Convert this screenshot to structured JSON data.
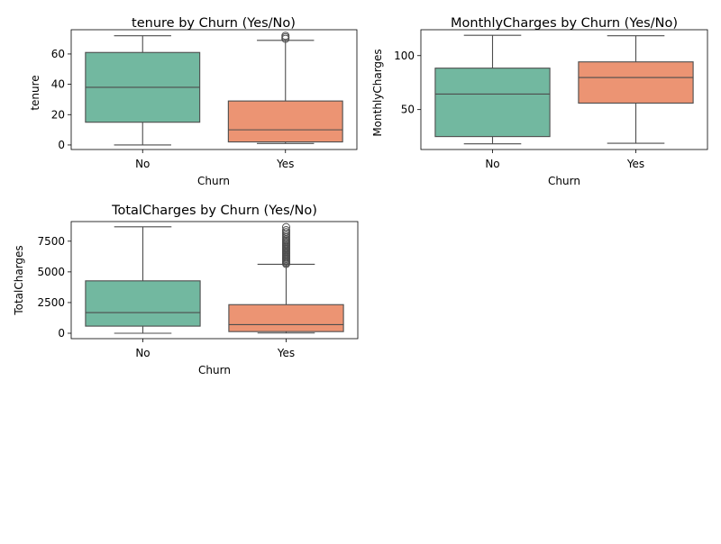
{
  "colors": {
    "No": "#72b8a0",
    "Yes": "#ec9473"
  },
  "chart_data": [
    {
      "type": "box",
      "title": "tenure by Churn (Yes/No)",
      "xlabel": "Churn",
      "ylabel": "tenure",
      "categories": [
        "No",
        "Yes"
      ],
      "ylim": [
        -3,
        76
      ],
      "yticks": [
        0,
        20,
        40,
        60
      ],
      "ytick_labels": [
        "0",
        "20",
        "40",
        "60"
      ],
      "boxes": [
        {
          "category": "No",
          "whisker_low": 0,
          "q1": 15,
          "median": 38,
          "q3": 61,
          "whisker_high": 72,
          "outliers": []
        },
        {
          "category": "Yes",
          "whisker_low": 1,
          "q1": 2,
          "median": 10,
          "q3": 29,
          "whisker_high": 69,
          "outliers": [
            70,
            71,
            72
          ]
        }
      ]
    },
    {
      "type": "box",
      "title": "MonthlyCharges by Churn (Yes/No)",
      "xlabel": "Churn",
      "ylabel": "MonthlyCharges",
      "categories": [
        "No",
        "Yes"
      ],
      "ylim": [
        13,
        124
      ],
      "yticks": [
        50,
        100
      ],
      "ytick_labels": [
        "50",
        "100"
      ],
      "boxes": [
        {
          "category": "No",
          "whisker_low": 18.3,
          "q1": 25,
          "median": 64.4,
          "q3": 88.4,
          "whisker_high": 118.8,
          "outliers": []
        },
        {
          "category": "Yes",
          "whisker_low": 18.8,
          "q1": 56,
          "median": 79.7,
          "q3": 94.2,
          "whisker_high": 118.4,
          "outliers": []
        }
      ]
    },
    {
      "type": "box",
      "title": "TotalCharges by Churn (Yes/No)",
      "xlabel": "Churn",
      "ylabel": "TotalCharges",
      "categories": [
        "No",
        "Yes"
      ],
      "ylim": [
        -440,
        9100
      ],
      "yticks": [
        0,
        2500,
        5000,
        7500
      ],
      "ytick_labels": [
        "0",
        "2500",
        "5000",
        "7500"
      ],
      "boxes": [
        {
          "category": "No",
          "whisker_low": 0,
          "q1": 580,
          "median": 1680,
          "q3": 4270,
          "whisker_high": 8670,
          "outliers": []
        },
        {
          "category": "Yes",
          "whisker_low": 19,
          "q1": 135,
          "median": 700,
          "q3": 2330,
          "whisker_high": 5620,
          "outliers": [
            5650,
            5750,
            5850,
            5950,
            6050,
            6150,
            6250,
            6350,
            6450,
            6550,
            6650,
            6750,
            6850,
            6950,
            7050,
            7150,
            7250,
            7350,
            7450,
            7550,
            7650,
            7800,
            7950,
            8100,
            8250,
            8400,
            8650
          ]
        }
      ]
    }
  ]
}
